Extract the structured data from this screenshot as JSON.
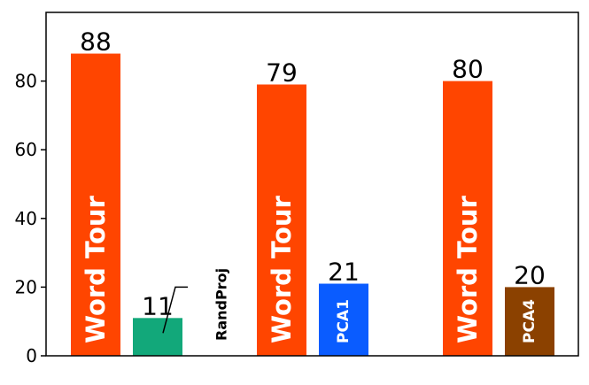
{
  "chart_data": {
    "type": "bar",
    "groups": [
      {
        "bars": [
          {
            "value": 88,
            "value_label": "88",
            "bar_label": "Word Tour",
            "color": "#FF4500"
          },
          {
            "value": 11,
            "value_label": "11",
            "bar_label": "RandProj",
            "color": "#12A87A",
            "label_outside": true
          }
        ]
      },
      {
        "bars": [
          {
            "value": 79,
            "value_label": "79",
            "bar_label": "Word Tour",
            "color": "#FF4500"
          },
          {
            "value": 21,
            "value_label": "21",
            "bar_label": "PCA1",
            "color": "#0A5CFF"
          }
        ]
      },
      {
        "bars": [
          {
            "value": 80,
            "value_label": "80",
            "bar_label": "Word Tour",
            "color": "#FF4500"
          },
          {
            "value": 20,
            "value_label": "20",
            "bar_label": "PCA4",
            "color": "#8B4100"
          }
        ]
      }
    ],
    "ylim": [
      0,
      100
    ],
    "yticks": [
      0,
      20,
      40,
      60,
      80
    ],
    "ytick_labels": [
      "0",
      "20",
      "40",
      "60",
      "80"
    ],
    "title": "",
    "xlabel": "",
    "ylabel": "",
    "grid": false,
    "legend": "none"
  }
}
